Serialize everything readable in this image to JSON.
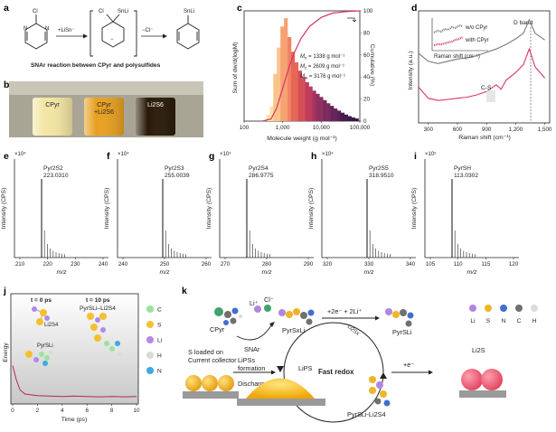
{
  "panels": {
    "a": {
      "letter": "a",
      "reagent": "+LiSn⁻",
      "leaving": "−Cl⁻",
      "cl_label": "Cl",
      "snli_label": "SnLi",
      "minus": "−",
      "n_label": "N",
      "caption": "SNAr reaction between CPyr and polysulfides"
    },
    "b": {
      "letter": "b",
      "vials": [
        {
          "label": "CPyr",
          "color": "#f3e6a4"
        },
        {
          "label": "CPyr\n+Li2S6",
          "color": "#e8a021"
        },
        {
          "label": "Li2S6",
          "color": "#2a1a08"
        }
      ]
    },
    "c": {
      "letter": "c",
      "ylabel": "Sum of dw/d(logM)",
      "y2label": "Cumulative (%)",
      "xlabel": "Molecule weight (g mol⁻¹)",
      "xticks": [
        "100",
        "1,000",
        "10,000",
        "100,000"
      ],
      "y2ticks": [
        "0",
        "20",
        "40",
        "60",
        "80",
        "100"
      ],
      "stats": [
        {
          "name": "Mn",
          "sub": "n",
          "value": " = 1338 g mol⁻¹"
        },
        {
          "name": "Mz",
          "sub": "z",
          "value": " = 2609 g mol⁻¹"
        },
        {
          "name": "Mw",
          "sub": "w",
          "value": " = 3176 g mol⁻¹"
        }
      ]
    },
    "d": {
      "letter": "d",
      "ylabel": "Intensity (a.u.)",
      "xlabel": "Raman shift (cm⁻¹)",
      "xticks": [
        "300",
        "600",
        "900",
        "1,200",
        "1,500"
      ],
      "series": [
        {
          "name": "w/o CPyr",
          "color": "#7a7a7a"
        },
        {
          "name": "with CPyr",
          "color": "#d6336c"
        }
      ],
      "d_band": "D band",
      "cs": "C-S",
      "inset_xlabel": "Raman shift (cm⁻¹)"
    },
    "e": {
      "letter": "e",
      "mult": "×10⁴",
      "species": "Pyr2S2",
      "mass": "223.0310",
      "xticks": [
        "210",
        "220",
        "230",
        "240"
      ],
      "ylabel": "Intensity (CPS)",
      "xlabel": "m/z"
    },
    "f": {
      "letter": "f",
      "mult": "×10⁴",
      "species": "Pyr2S3",
      "mass": "255.0039",
      "xticks": [
        "240",
        "250",
        "260"
      ]
    },
    "g": {
      "letter": "g",
      "mult": "×10⁴",
      "species": "Pyr2S4",
      "mass": "286.9775",
      "xticks": [
        "270",
        "280",
        "290"
      ],
      "ylabel": "Intensity (CPS)",
      "xlabel": "m/z"
    },
    "h": {
      "letter": "h",
      "mult": "×10⁴",
      "species": "Pyr2S5",
      "mass": "318.9510",
      "xticks": [
        "320",
        "330",
        "340"
      ],
      "ylabel": "Intensity (CPS)",
      "xlabel": "m/z"
    },
    "i": {
      "letter": "i",
      "mult": "×10⁵",
      "species": "PyrSH",
      "mass": "113.0302",
      "xticks": [
        "105",
        "110",
        "115",
        "120"
      ],
      "ylabel": "Intensity (CPS)",
      "xlabel": "m/z",
      "sh": "SH"
    },
    "j": {
      "letter": "j",
      "t0": "t = 0 ps",
      "t10": "t = 10 ps",
      "li2s4": "Li2S4",
      "pyrsli": "PyrSLi",
      "complex": "PyrSLi–Li2S4",
      "ylabel": "Energy",
      "xlabel": "Time (ps)",
      "xticks": [
        "0",
        "2",
        "4",
        "6",
        "8",
        "10"
      ],
      "legend": [
        {
          "label": "C",
          "color": "#9be39b"
        },
        {
          "label": "S",
          "color": "#f2c12e"
        },
        {
          "label": "Li",
          "color": "#b388e8"
        },
        {
          "label": "H",
          "color": "#d9d9d9"
        },
        {
          "label": "N",
          "color": "#3fa8e6"
        }
      ]
    },
    "k": {
      "letter": "k",
      "cpyr": "CPyr",
      "li": "Li⁺",
      "cl": "Cl⁻",
      "snar": "SNAr",
      "pyrsxli": "PyrSxLi",
      "electrons": "+2e⁻ + 2Li⁺",
      "li2s": "Li2S",
      "li2sx": "Li2Sx",
      "pyrsli": "PyrSLi",
      "s_loaded": "S loaded on\nCurrent collector",
      "lipss": "LiPSs\nformation",
      "discharge": "Discharge",
      "lips": "LiPS",
      "fast_redox": "Fast redox",
      "complex": "PyrSLi-Li2S4",
      "plus_e": "+e⁻",
      "legend": [
        {
          "label": "Li",
          "color": "#b086de"
        },
        {
          "label": "S",
          "color": "#f0b429"
        },
        {
          "label": "N",
          "color": "#3f6fd1"
        },
        {
          "label": "C",
          "color": "#707070"
        },
        {
          "label": "H",
          "color": "#dcdcdc"
        }
      ]
    }
  },
  "chart_data": [
    {
      "panel": "c",
      "type": "bar",
      "x_scale": "log",
      "x_label": "Molecule weight (g mol⁻¹)",
      "y_label": "Sum of dw/d(logM)",
      "y2_label": "Cumulative (%)",
      "x": [
        420,
        520,
        640,
        790,
        980,
        1210,
        1500,
        1850,
        2280,
        2820,
        3490,
        4310,
        5330,
        6590,
        8140,
        10060,
        12430,
        15370,
        19000,
        23480,
        29020,
        35870,
        44330,
        54800,
        67740,
        83720
      ],
      "values": [
        0.06,
        0.14,
        0.45,
        0.7,
        0.9,
        0.98,
        0.8,
        0.66,
        0.56,
        0.48,
        0.42,
        0.37,
        0.33,
        0.29,
        0.26,
        0.23,
        0.2,
        0.17,
        0.145,
        0.12,
        0.1,
        0.08,
        0.062,
        0.047,
        0.035,
        0.025
      ],
      "cumulative_x": [
        300,
        500,
        700,
        1000,
        1500,
        2000,
        3000,
        5000,
        10000,
        20000,
        50000,
        100000
      ],
      "cumulative_y": [
        0,
        2,
        12,
        30,
        50,
        62,
        75,
        86,
        94,
        98,
        99.5,
        100
      ],
      "y2lim": [
        0,
        100
      ],
      "xlim": [
        100,
        100000
      ]
    },
    {
      "panel": "d",
      "type": "line",
      "x_label": "Raman shift (cm⁻¹)",
      "y_label": "Intensity (a.u.)",
      "xlim": [
        200,
        1550
      ],
      "series": [
        {
          "name": "w/o CPyr",
          "x": [
            200,
            300,
            400,
            500,
            600,
            700,
            800,
            900,
            1000,
            1100,
            1200,
            1280,
            1340,
            1400,
            1500
          ],
          "y": [
            0.62,
            0.55,
            0.53,
            0.55,
            0.57,
            0.58,
            0.6,
            0.63,
            0.66,
            0.7,
            0.75,
            0.8,
            0.92,
            0.8,
            0.74
          ]
        },
        {
          "name": "with CPyr",
          "x": [
            200,
            300,
            400,
            500,
            600,
            700,
            800,
            900,
            1000,
            1050,
            1100,
            1200,
            1280,
            1340,
            1400,
            1500
          ],
          "y": [
            0.32,
            0.22,
            0.2,
            0.21,
            0.22,
            0.23,
            0.25,
            0.28,
            0.34,
            0.3,
            0.38,
            0.45,
            0.52,
            0.66,
            0.5,
            0.4
          ]
        }
      ]
    },
    {
      "panel": "j",
      "type": "line",
      "x_label": "Time (ps)",
      "y_label": "Energy",
      "xlim": [
        0,
        10
      ],
      "series": [
        {
          "name": "energy",
          "x": [
            0,
            0.3,
            0.6,
            1,
            1.5,
            2,
            3,
            4,
            5,
            6,
            7,
            8,
            9,
            10
          ],
          "y": [
            0.9,
            0.55,
            0.3,
            0.2,
            0.18,
            0.16,
            0.15,
            0.14,
            0.15,
            0.14,
            0.13,
            0.14,
            0.13,
            0.14
          ]
        }
      ]
    }
  ]
}
